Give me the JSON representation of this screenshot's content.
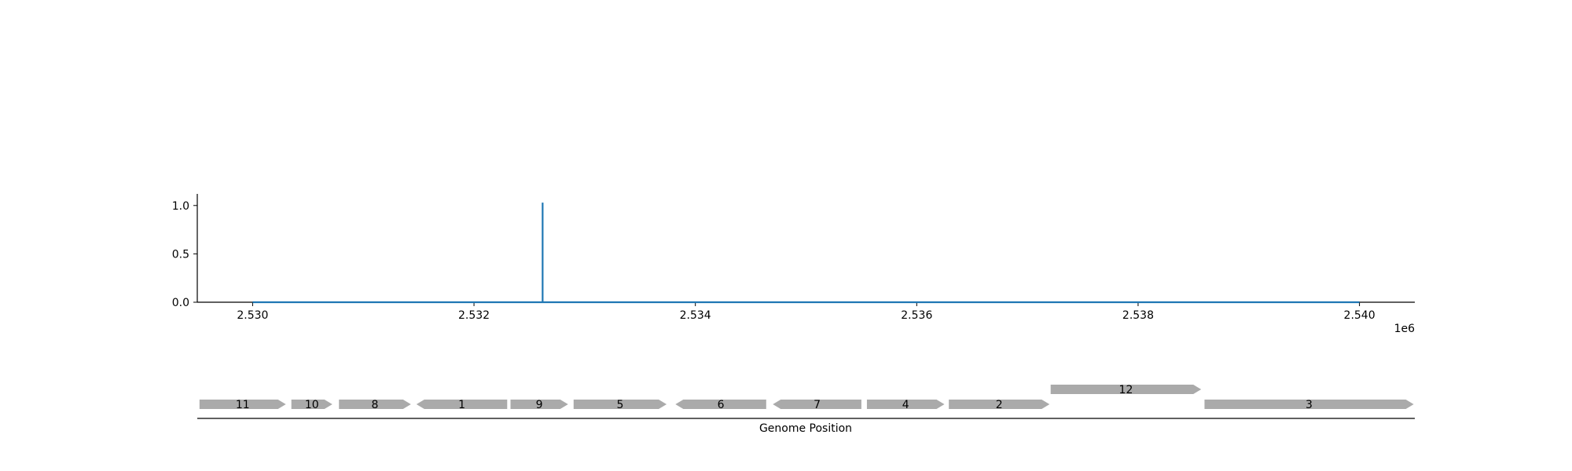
{
  "chart_data": [
    {
      "type": "line",
      "x_multiplier_label": "1e6",
      "xlim": [
        2529500,
        2540500
      ],
      "ylim": [
        0,
        1.12
      ],
      "x_ticks": [
        2530000,
        2532000,
        2534000,
        2536000,
        2538000,
        2540000
      ],
      "x_tick_labels": [
        "2.530",
        "2.532",
        "2.534",
        "2.536",
        "2.538",
        "2.540"
      ],
      "y_ticks": [
        0.0,
        0.5,
        1.0
      ],
      "y_tick_labels": [
        "0.0",
        "0.5",
        "1.0"
      ],
      "series": [
        {
          "color": "#1f77b4",
          "x": [
            2530000,
            2532620,
            2532620,
            2532620,
            2532620,
            2540000
          ],
          "y": [
            0,
            0,
            1.03,
            1.03,
            0,
            0
          ]
        }
      ],
      "grid": false,
      "legend": "none"
    },
    {
      "type": "gene_map",
      "xlabel": "Genome Position",
      "xlim": [
        2529500,
        2540500
      ],
      "gene_color": "#aaaaaa",
      "genes": [
        {
          "label": "11",
          "start": 2529520,
          "end": 2530300,
          "strand": "+",
          "row": 0
        },
        {
          "label": "10",
          "start": 2530350,
          "end": 2530720,
          "strand": "+",
          "row": 0
        },
        {
          "label": "8",
          "start": 2530780,
          "end": 2531430,
          "strand": "+",
          "row": 0
        },
        {
          "label": "1",
          "start": 2531480,
          "end": 2532300,
          "strand": "-",
          "row": 0
        },
        {
          "label": "9",
          "start": 2532330,
          "end": 2532850,
          "strand": "+",
          "row": 0
        },
        {
          "label": "5",
          "start": 2532900,
          "end": 2533740,
          "strand": "+",
          "row": 0
        },
        {
          "label": "6",
          "start": 2533820,
          "end": 2534640,
          "strand": "-",
          "row": 0
        },
        {
          "label": "7",
          "start": 2534700,
          "end": 2535500,
          "strand": "-",
          "row": 0
        },
        {
          "label": "4",
          "start": 2535550,
          "end": 2536250,
          "strand": "+",
          "row": 0
        },
        {
          "label": "2",
          "start": 2536290,
          "end": 2537200,
          "strand": "+",
          "row": 0
        },
        {
          "label": "12",
          "start": 2537210,
          "end": 2538570,
          "strand": "+",
          "row": 1
        },
        {
          "label": "3",
          "start": 2538600,
          "end": 2540490,
          "strand": "+",
          "row": 0
        }
      ]
    }
  ]
}
